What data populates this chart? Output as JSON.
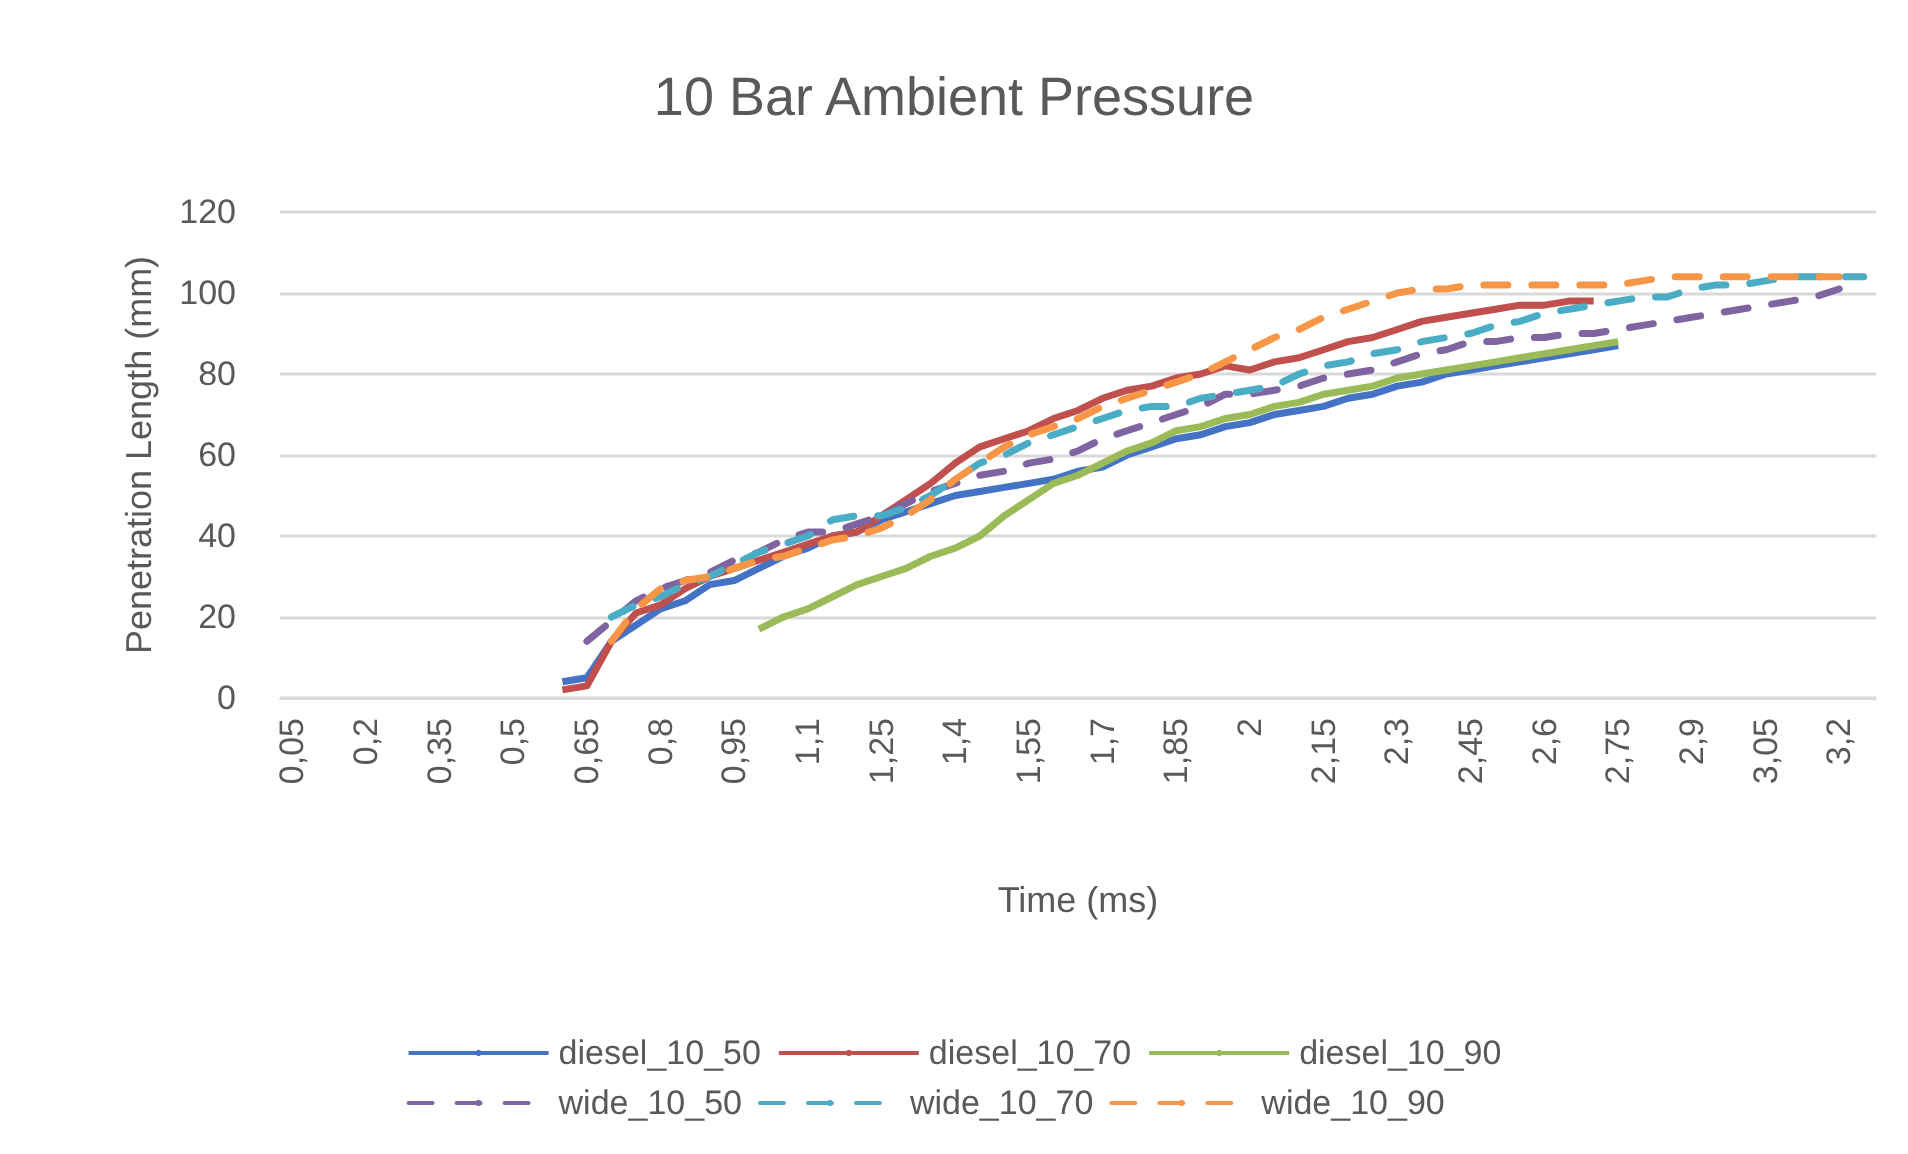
{
  "chart_data": {
    "type": "line",
    "title": "10 Bar Ambient Pressure",
    "xlabel": "Time (ms)",
    "ylabel": "Penetration Length (mm)",
    "categories": [
      "0,05",
      null,
      null,
      "0,2",
      null,
      null,
      "0,35",
      null,
      null,
      "0,5",
      null,
      null,
      "0,65",
      null,
      null,
      "0,8",
      null,
      null,
      "0,95",
      null,
      null,
      "1,1",
      null,
      null,
      "1,25",
      null,
      null,
      "1,4",
      null,
      null,
      "1,55",
      null,
      null,
      "1,7",
      null,
      null,
      "1,85",
      null,
      null,
      "2",
      null,
      null,
      "2,15",
      null,
      null,
      "2,3",
      null,
      null,
      "2,45",
      null,
      null,
      "2,6",
      null,
      null,
      "2,75",
      null,
      null,
      "2,9",
      null,
      null,
      "3,05",
      null,
      null,
      "3,2",
      null
    ],
    "ylim": [
      0,
      120
    ],
    "yticks": [
      0,
      20,
      40,
      60,
      80,
      100,
      120
    ],
    "grid": "y",
    "legend": "bottom",
    "marker": "none",
    "series": [
      {
        "name": "diesel_10_50",
        "color": "#4472c4",
        "line_style": "solid",
        "values": [
          null,
          null,
          null,
          null,
          null,
          null,
          null,
          null,
          null,
          null,
          null,
          4,
          5,
          14,
          18,
          22,
          24,
          28,
          29,
          32,
          35,
          37,
          40,
          41,
          44,
          46,
          48,
          50,
          51,
          52,
          53,
          54,
          56,
          57,
          60,
          62,
          64,
          65,
          67,
          68,
          70,
          71,
          72,
          74,
          75,
          77,
          78,
          80,
          81,
          82,
          83,
          84,
          85,
          86,
          87,
          null,
          null,
          null,
          null,
          null,
          null,
          null,
          null,
          null,
          null
        ]
      },
      {
        "name": "diesel_10_70",
        "color": "#c0504d",
        "line_style": "solid",
        "values": [
          null,
          null,
          null,
          null,
          null,
          null,
          null,
          null,
          null,
          null,
          null,
          2,
          3,
          14,
          21,
          23,
          27,
          30,
          32,
          34,
          36,
          38,
          40,
          41,
          45,
          49,
          53,
          58,
          62,
          64,
          66,
          69,
          71,
          74,
          76,
          77,
          79,
          80,
          82,
          81,
          83,
          84,
          86,
          88,
          89,
          91,
          93,
          94,
          95,
          96,
          97,
          97,
          98,
          98,
          null,
          null,
          null,
          null,
          null,
          null,
          null,
          null,
          null,
          null,
          null
        ]
      },
      {
        "name": "diesel_10_90",
        "color": "#9bbb59",
        "line_style": "solid",
        "values": [
          null,
          null,
          null,
          null,
          null,
          null,
          null,
          null,
          null,
          null,
          null,
          null,
          null,
          null,
          null,
          null,
          null,
          null,
          null,
          17,
          20,
          22,
          25,
          28,
          30,
          32,
          35,
          37,
          40,
          45,
          49,
          53,
          55,
          58,
          61,
          63,
          66,
          67,
          69,
          70,
          72,
          73,
          75,
          76,
          77,
          79,
          80,
          81,
          82,
          83,
          84,
          85,
          86,
          87,
          88,
          null,
          null,
          null,
          null,
          null,
          null,
          null,
          null,
          null,
          null
        ]
      },
      {
        "name": "wide_10_50",
        "color": "#8064a2",
        "line_style": "dashed",
        "values": [
          null,
          null,
          null,
          null,
          null,
          null,
          null,
          null,
          null,
          null,
          null,
          null,
          14,
          19,
          24,
          27,
          29,
          31,
          34,
          36,
          39,
          41,
          41,
          43,
          45,
          48,
          51,
          53,
          55,
          56,
          58,
          59,
          61,
          64,
          66,
          68,
          70,
          72,
          75,
          75,
          76,
          77,
          79,
          80,
          81,
          83,
          85,
          86,
          88,
          88,
          89,
          89,
          90,
          90,
          91,
          92,
          93,
          94,
          95,
          96,
          97,
          98,
          99,
          101,
          null
        ]
      },
      {
        "name": "wide_10_70",
        "color": "#4bacc6",
        "line_style": "dashed",
        "values": [
          null,
          null,
          null,
          null,
          null,
          null,
          null,
          null,
          null,
          null,
          null,
          null,
          null,
          20,
          23,
          25,
          28,
          30,
          33,
          36,
          38,
          40,
          44,
          45,
          45,
          47,
          50,
          54,
          58,
          60,
          63,
          65,
          67,
          69,
          71,
          72,
          72,
          74,
          75,
          76,
          77,
          80,
          82,
          83,
          85,
          86,
          88,
          89,
          90,
          92,
          93,
          95,
          96,
          97,
          98,
          99,
          99,
          101,
          102,
          102,
          103,
          104,
          104,
          104,
          104
        ]
      },
      {
        "name": "wide_10_90",
        "color": "#f79646",
        "line_style": "dashed",
        "values": [
          null,
          null,
          null,
          null,
          null,
          null,
          null,
          null,
          null,
          null,
          null,
          null,
          null,
          14,
          22,
          27,
          29,
          30,
          32,
          34,
          35,
          37,
          39,
          40,
          42,
          45,
          49,
          54,
          58,
          62,
          65,
          67,
          69,
          72,
          74,
          76,
          78,
          80,
          83,
          86,
          89,
          91,
          94,
          96,
          98,
          100,
          101,
          101,
          102,
          102,
          102,
          102,
          102,
          102,
          102,
          103,
          104,
          104,
          104,
          104,
          104,
          104,
          104,
          104,
          null
        ]
      }
    ]
  }
}
